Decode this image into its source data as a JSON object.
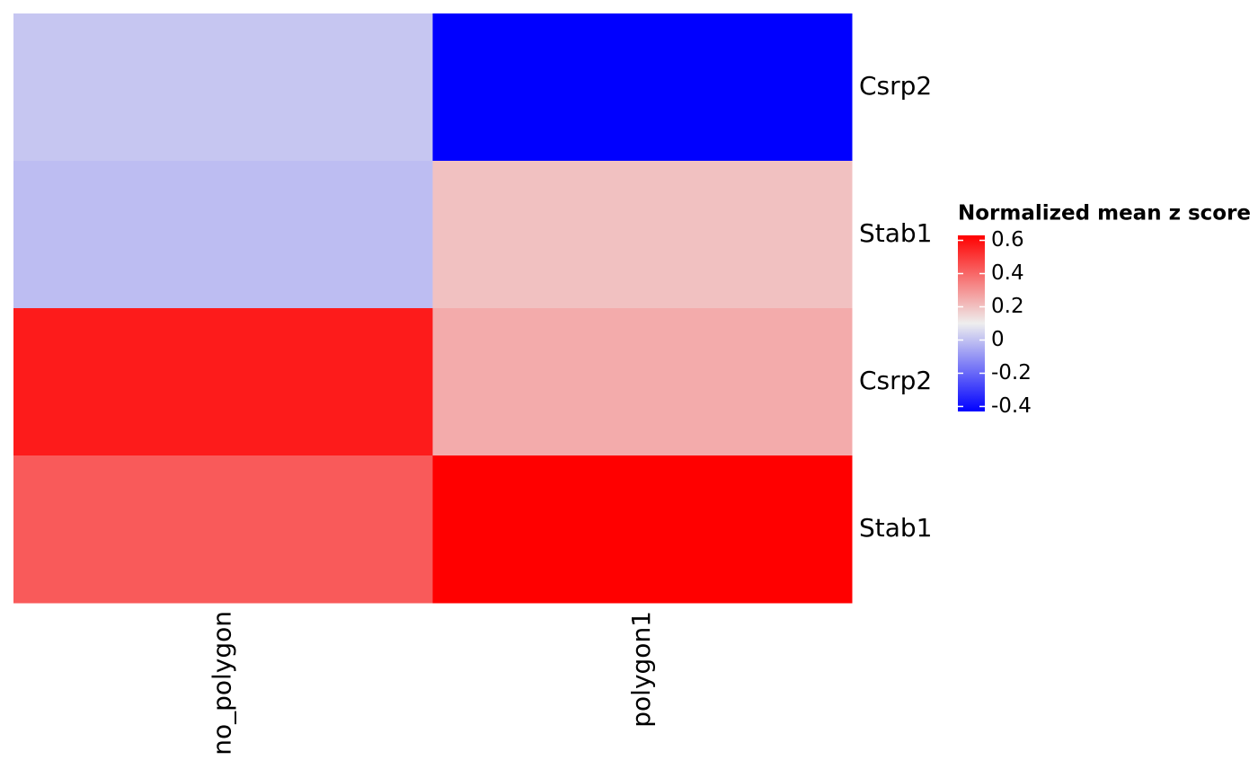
{
  "chart_data": {
    "type": "heatmap",
    "columns": [
      "no_polygon",
      "polygon1"
    ],
    "rows": [
      "Csrp2",
      "Stab1",
      "Csrp2",
      "Stab1"
    ],
    "values": [
      [
        0.01,
        -0.43
      ],
      [
        -0.01,
        0.2
      ],
      [
        0.57,
        0.25
      ],
      [
        0.43,
        0.63
      ]
    ],
    "legend_title": "Normalized mean z score",
    "clim": [
      -0.43,
      0.63
    ],
    "cticks": [
      0.6,
      0.4,
      0.2,
      0,
      -0.2,
      -0.4
    ],
    "colors": [
      "#0000ff",
      "#eeeeee",
      "#ff0000"
    ]
  }
}
